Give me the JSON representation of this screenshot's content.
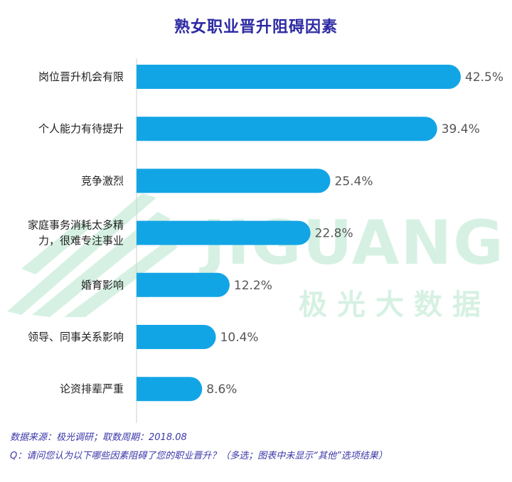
{
  "title": "熟女职业晋升阻碍因素",
  "watermark": {
    "brand": "JIGUANG",
    "sub": "极光大数据",
    "logo_icon": "jiguang-logo-icon"
  },
  "colors": {
    "bar": "#12a5e6",
    "title": "#2d2aa3",
    "footnote": "#3a36a8",
    "watermark": "#d6f1e3"
  },
  "chart_data": {
    "type": "bar",
    "orientation": "horizontal",
    "title": "熟女职业晋升阻碍因素",
    "categories": [
      [
        "岗位晋升机会有限"
      ],
      [
        "个人能力有待提升"
      ],
      [
        "竞争激烈"
      ],
      [
        "家庭事务消耗太多精",
        "力，很难专注事业"
      ],
      [
        "婚育影响"
      ],
      [
        "领导、同事关系影响"
      ],
      [
        "论资排辈严重"
      ]
    ],
    "values": [
      42.5,
      39.4,
      25.4,
      22.8,
      12.2,
      10.4,
      8.6
    ],
    "value_labels": [
      "42.5%",
      "39.4%",
      "25.4%",
      "22.8%",
      "12.2%",
      "10.4%",
      "8.6%"
    ],
    "unit": "%",
    "xlim": [
      0,
      42.5
    ],
    "grid": false,
    "legend": "none"
  },
  "footnotes": {
    "source": "数据来源：极光调研；取数周期：2018.08",
    "question": "Q：请问您认为以下哪些因素阻碍了您的职业晋升？（多选；图表中未显示“其他”选项结果）"
  }
}
